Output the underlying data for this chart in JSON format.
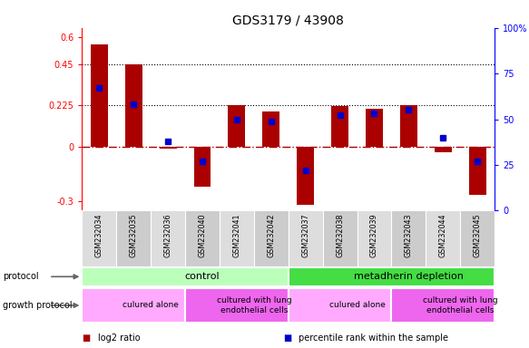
{
  "title": "GDS3179 / 43908",
  "samples": [
    "GSM232034",
    "GSM232035",
    "GSM232036",
    "GSM232040",
    "GSM232041",
    "GSM232042",
    "GSM232037",
    "GSM232038",
    "GSM232039",
    "GSM232043",
    "GSM232044",
    "GSM232045"
  ],
  "log2_ratio": [
    0.56,
    0.45,
    -0.01,
    -0.22,
    0.225,
    0.19,
    -0.32,
    0.22,
    0.205,
    0.225,
    -0.03,
    -0.265
  ],
  "percentile_rank": [
    67,
    58,
    38,
    27,
    50,
    49,
    22,
    52,
    53,
    55,
    40,
    27
  ],
  "bar_color": "#aa0000",
  "dot_color": "#0000cc",
  "left_yticks": [
    -0.3,
    0,
    0.225,
    0.45,
    0.6
  ],
  "left_ylabels": [
    "-0.3",
    "0",
    "0.225",
    "0.45",
    "0.6"
  ],
  "right_yticks": [
    0,
    25,
    50,
    75,
    100
  ],
  "right_ylabels": [
    "0",
    "25",
    "50",
    "75",
    "100%"
  ],
  "ylim_left": [
    -0.35,
    0.65
  ],
  "hlines": [
    0.225,
    0.45
  ],
  "protocol_groups": [
    {
      "label": "control",
      "start": 0,
      "end": 6,
      "color": "#bbffbb"
    },
    {
      "label": "metadherin depletion",
      "start": 6,
      "end": 12,
      "color": "#44dd44"
    }
  ],
  "growth_protocol_groups": [
    {
      "label": "culured alone",
      "start": 0,
      "end": 3,
      "color": "#ffaaff"
    },
    {
      "label": "cultured with lung\nendothelial cells",
      "start": 3,
      "end": 6,
      "color": "#ee66ee"
    },
    {
      "label": "culured alone",
      "start": 6,
      "end": 9,
      "color": "#ffaaff"
    },
    {
      "label": "cultured with lung\nendothelial cells",
      "start": 9,
      "end": 12,
      "color": "#ee66ee"
    }
  ],
  "legend_items": [
    {
      "label": "log2 ratio",
      "color": "#aa0000"
    },
    {
      "label": "percentile rank within the sample",
      "color": "#0000cc"
    }
  ],
  "bg_color": "#ffffff"
}
